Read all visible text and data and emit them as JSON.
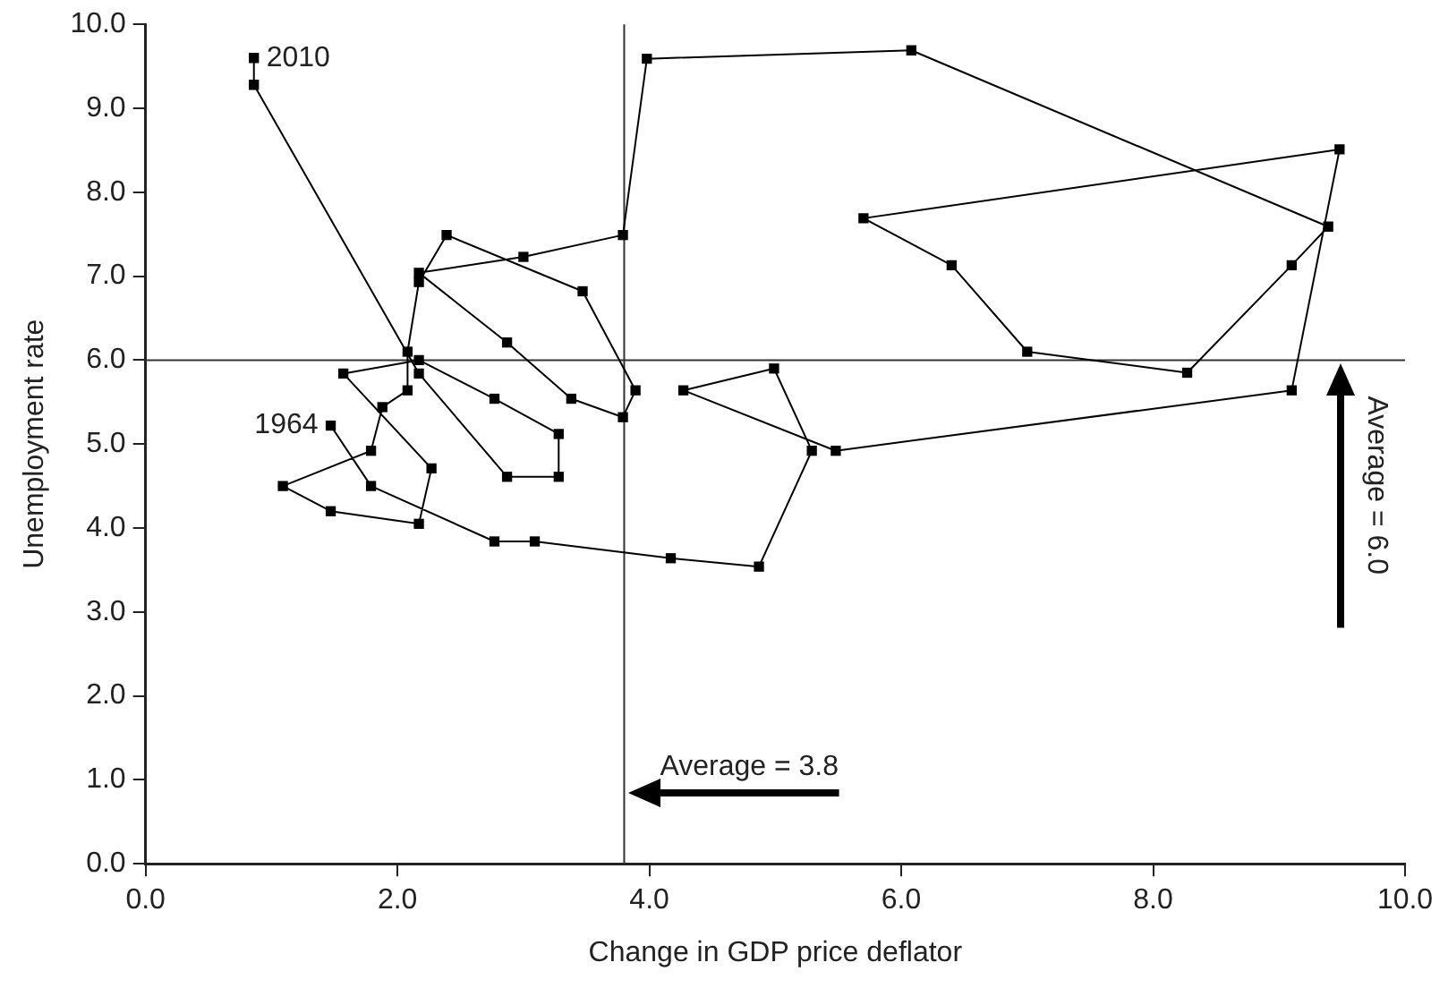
{
  "chart_data": {
    "type": "line",
    "xlabel": "Change in GDP price deflator",
    "ylabel": "Unemployment rate",
    "x": [
      1.47,
      1.79,
      2.77,
      3.09,
      4.17,
      4.87,
      5.29,
      4.99,
      4.27,
      5.48,
      9.1,
      9.48,
      5.7,
      6.4,
      7.0,
      8.27,
      9.1,
      9.39,
      6.08,
      3.98,
      3.79,
      3.0,
      2.17,
      2.87,
      3.38,
      3.79,
      3.89,
      3.47,
      2.39,
      2.17,
      2.08,
      2.08,
      1.88,
      1.79,
      1.09,
      1.47,
      2.17,
      2.27,
      1.57,
      2.17,
      2.77,
      3.28,
      3.28,
      2.87,
      2.17,
      0.86,
      0.86
    ],
    "series": [
      {
        "color": "#000000",
        "values": [
          5.22,
          4.5,
          3.84,
          3.84,
          3.64,
          3.54,
          4.92,
          5.9,
          5.64,
          4.92,
          5.64,
          8.51,
          7.69,
          7.13,
          6.1,
          5.85,
          7.13,
          7.59,
          9.69,
          9.59,
          7.49,
          7.23,
          7.04,
          6.21,
          5.54,
          5.32,
          5.64,
          6.82,
          7.49,
          6.93,
          6.1,
          5.64,
          5.44,
          4.92,
          4.5,
          4.2,
          4.05,
          4.71,
          5.84,
          6.0,
          5.54,
          5.12,
          4.61,
          4.61,
          5.84,
          9.28,
          9.6
        ]
      }
    ],
    "marker": "square",
    "line_style": "solid",
    "grid": false,
    "legend": false,
    "xlim": [
      0,
      10
    ],
    "ylim": [
      0,
      10
    ],
    "xticks": [
      {
        "value": 0,
        "label": "0.0"
      },
      {
        "value": 2,
        "label": "2.0"
      },
      {
        "value": 4,
        "label": "4.0"
      },
      {
        "value": 6,
        "label": "6.0"
      },
      {
        "value": 8,
        "label": "8.0"
      },
      {
        "value": 10,
        "label": "10.0"
      }
    ],
    "yticks": [
      {
        "value": 0,
        "label": "0.0"
      },
      {
        "value": 1,
        "label": "1.0"
      },
      {
        "value": 2,
        "label": "2.0"
      },
      {
        "value": 3,
        "label": "3.0"
      },
      {
        "value": 4,
        "label": "4.0"
      },
      {
        "value": 5,
        "label": "5.0"
      },
      {
        "value": 6,
        "label": "6.0"
      },
      {
        "value": 7,
        "label": "7.0"
      },
      {
        "value": 8,
        "label": "8.0"
      },
      {
        "value": 9,
        "label": "9.0"
      },
      {
        "value": 10,
        "label": "10.0"
      }
    ],
    "ref_lines": [
      {
        "axis": "x",
        "value": 3.8,
        "label": "Average = 3.8",
        "color": "#333333"
      },
      {
        "axis": "y",
        "value": 6.0,
        "label": "Average = 6.0",
        "color": "#333333"
      }
    ],
    "annotations": [
      {
        "text": "1964",
        "x": 1.47,
        "y": 5.22
      },
      {
        "text": "2010",
        "x": 0.86,
        "y": 9.6
      }
    ]
  }
}
